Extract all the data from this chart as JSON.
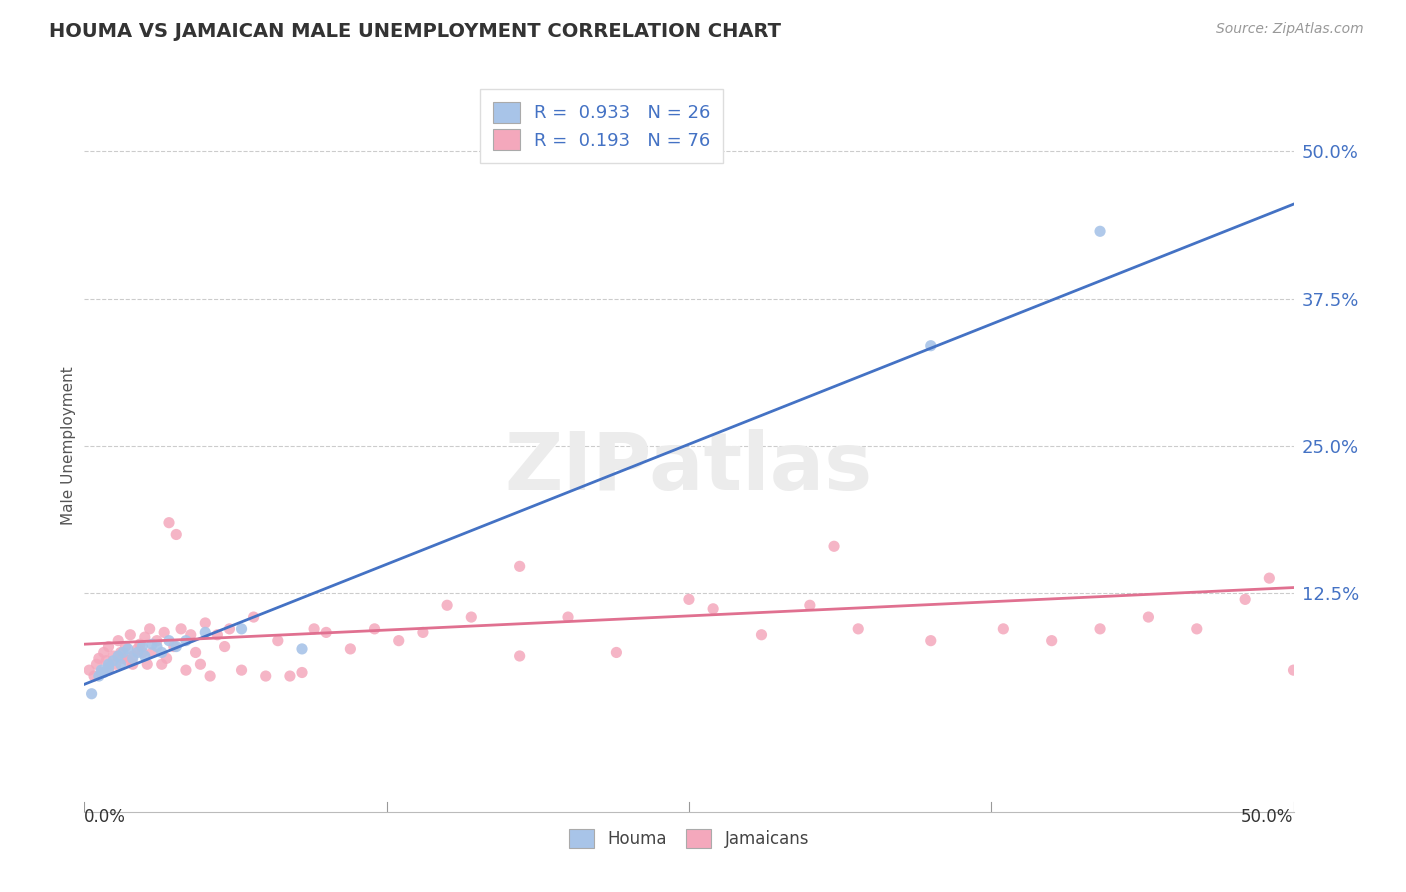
{
  "title": "HOUMA VS JAMAICAN MALE UNEMPLOYMENT CORRELATION CHART",
  "source": "Source: ZipAtlas.com",
  "ylabel": "Male Unemployment",
  "houma_color": "#a8c4e8",
  "jamaican_color": "#f4a8bc",
  "houma_line_color": "#4472c4",
  "jamaican_line_color": "#e07090",
  "watermark": "ZIPatlas",
  "legend_label_1": "R =  0.933   N = 26",
  "legend_label_2": "R =  0.193   N = 76",
  "xmin": 0.0,
  "xmax": 0.5,
  "ymin": -0.06,
  "ymax": 0.56,
  "ytick_values": [
    0.0,
    0.125,
    0.25,
    0.375,
    0.5
  ],
  "houma_line_x0": 0.0,
  "houma_line_y0": 0.048,
  "houma_line_x1": 0.5,
  "houma_line_y1": 0.455,
  "jamaican_line_x0": 0.0,
  "jamaican_line_y0": 0.082,
  "jamaican_line_x1": 0.5,
  "jamaican_line_y1": 0.13,
  "houma_x": [
    0.003,
    0.006,
    0.007,
    0.008,
    0.01,
    0.01,
    0.012,
    0.014,
    0.015,
    0.016,
    0.018,
    0.02,
    0.022,
    0.024,
    0.025,
    0.028,
    0.03,
    0.032,
    0.035,
    0.038,
    0.042,
    0.05,
    0.065,
    0.09,
    0.35,
    0.42
  ],
  "houma_y": [
    0.04,
    0.055,
    0.06,
    0.058,
    0.065,
    0.062,
    0.068,
    0.072,
    0.065,
    0.075,
    0.078,
    0.07,
    0.075,
    0.08,
    0.072,
    0.082,
    0.08,
    0.075,
    0.085,
    0.08,
    0.085,
    0.092,
    0.095,
    0.078,
    0.335,
    0.432
  ],
  "jamaican_x": [
    0.002,
    0.004,
    0.005,
    0.006,
    0.007,
    0.008,
    0.009,
    0.01,
    0.01,
    0.012,
    0.013,
    0.014,
    0.015,
    0.016,
    0.017,
    0.018,
    0.019,
    0.02,
    0.02,
    0.022,
    0.023,
    0.024,
    0.025,
    0.026,
    0.027,
    0.028,
    0.03,
    0.032,
    0.033,
    0.034,
    0.035,
    0.037,
    0.038,
    0.04,
    0.042,
    0.044,
    0.046,
    0.048,
    0.05,
    0.052,
    0.055,
    0.058,
    0.06,
    0.065,
    0.07,
    0.075,
    0.08,
    0.085,
    0.09,
    0.095,
    0.1,
    0.11,
    0.12,
    0.13,
    0.14,
    0.15,
    0.16,
    0.18,
    0.2,
    0.22,
    0.25,
    0.28,
    0.3,
    0.32,
    0.35,
    0.38,
    0.4,
    0.42,
    0.44,
    0.46,
    0.48,
    0.49,
    0.5,
    0.31,
    0.26,
    0.18
  ],
  "jamaican_y": [
    0.06,
    0.055,
    0.065,
    0.07,
    0.058,
    0.075,
    0.068,
    0.06,
    0.08,
    0.072,
    0.065,
    0.085,
    0.075,
    0.07,
    0.08,
    0.068,
    0.09,
    0.072,
    0.065,
    0.078,
    0.082,
    0.075,
    0.088,
    0.065,
    0.095,
    0.075,
    0.085,
    0.065,
    0.092,
    0.07,
    0.185,
    0.08,
    0.175,
    0.095,
    0.06,
    0.09,
    0.075,
    0.065,
    0.1,
    0.055,
    0.09,
    0.08,
    0.095,
    0.06,
    0.105,
    0.055,
    0.085,
    0.055,
    0.058,
    0.095,
    0.092,
    0.078,
    0.095,
    0.085,
    0.092,
    0.115,
    0.105,
    0.072,
    0.105,
    0.075,
    0.12,
    0.09,
    0.115,
    0.095,
    0.085,
    0.095,
    0.085,
    0.095,
    0.105,
    0.095,
    0.12,
    0.138,
    0.06,
    0.165,
    0.112,
    0.148
  ]
}
